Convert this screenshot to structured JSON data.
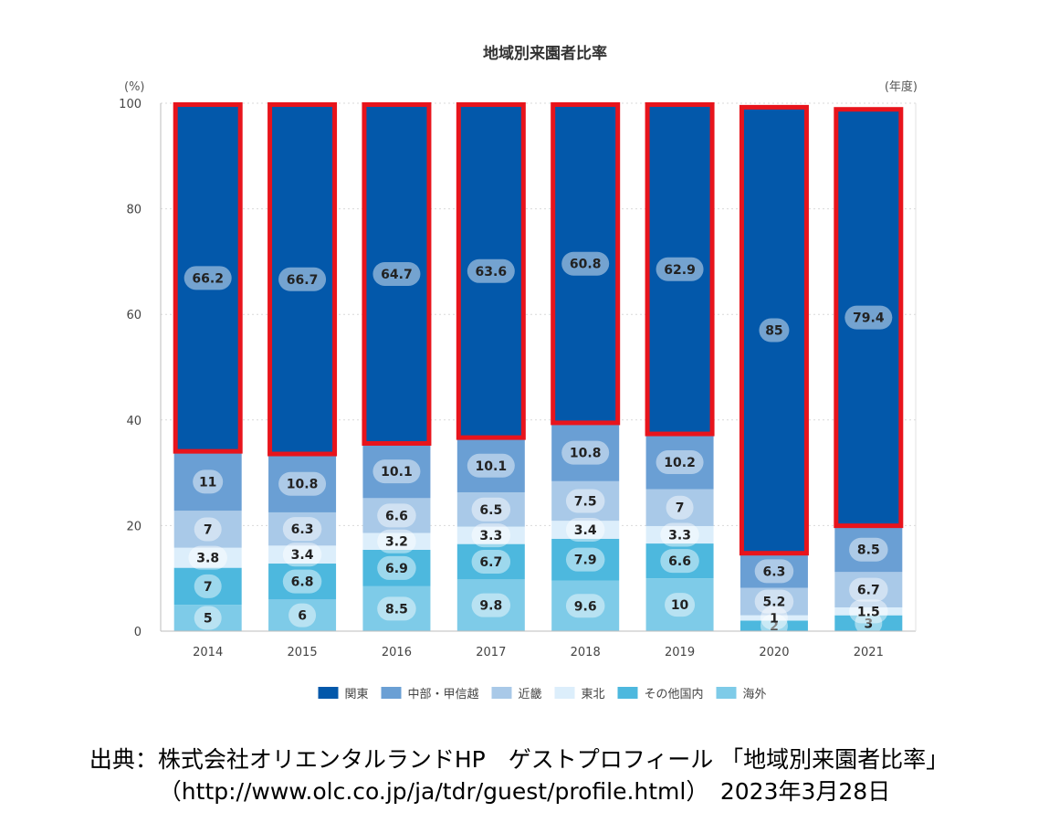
{
  "chart_data": {
    "type": "bar",
    "stacked": true,
    "title": "地域別来園者比率",
    "y_unit": "(%)",
    "x_unit": "(年度)",
    "ylim": [
      0,
      100
    ],
    "yticks": [
      0,
      20,
      40,
      60,
      80,
      100
    ],
    "grid": true,
    "legend_position": "bottom",
    "categories": [
      "2014",
      "2015",
      "2016",
      "2017",
      "2018",
      "2019",
      "2020",
      "2021"
    ],
    "series": [
      {
        "name": "海外",
        "color": "#7ecbe8",
        "values": [
          5,
          6,
          8.5,
          9.8,
          9.6,
          10,
          0,
          0
        ]
      },
      {
        "name": "その他国内",
        "color": "#4db8de",
        "values": [
          7,
          6.8,
          6.9,
          6.7,
          7.9,
          6.6,
          2,
          3
        ]
      },
      {
        "name": "東北",
        "color": "#dceefb",
        "values": [
          3.8,
          3.4,
          3.2,
          3.3,
          3.4,
          3.3,
          1,
          1.5
        ]
      },
      {
        "name": "近畿",
        "color": "#a9c9e8",
        "values": [
          7,
          6.3,
          6.6,
          6.5,
          7.5,
          7,
          5.2,
          6.7
        ]
      },
      {
        "name": "中部・甲信越",
        "color": "#6a9fd4",
        "values": [
          11,
          10.8,
          10.1,
          10.1,
          10.8,
          10.2,
          6.3,
          8.5
        ]
      },
      {
        "name": "関東",
        "color": "#0358aa",
        "values": [
          66.2,
          66.7,
          64.7,
          63.6,
          60.8,
          62.9,
          85,
          79.4
        ]
      }
    ],
    "highlight": {
      "series": "関東",
      "outline_color": "#e8141c"
    }
  },
  "caption": {
    "line1": "出典：株式会社オリエンタルランドHP　ゲストプロフィール 「地域別来園者比率」",
    "line2": "（http://www.olc.co.jp/ja/tdr/guest/profile.html）　2023年3月28日"
  }
}
